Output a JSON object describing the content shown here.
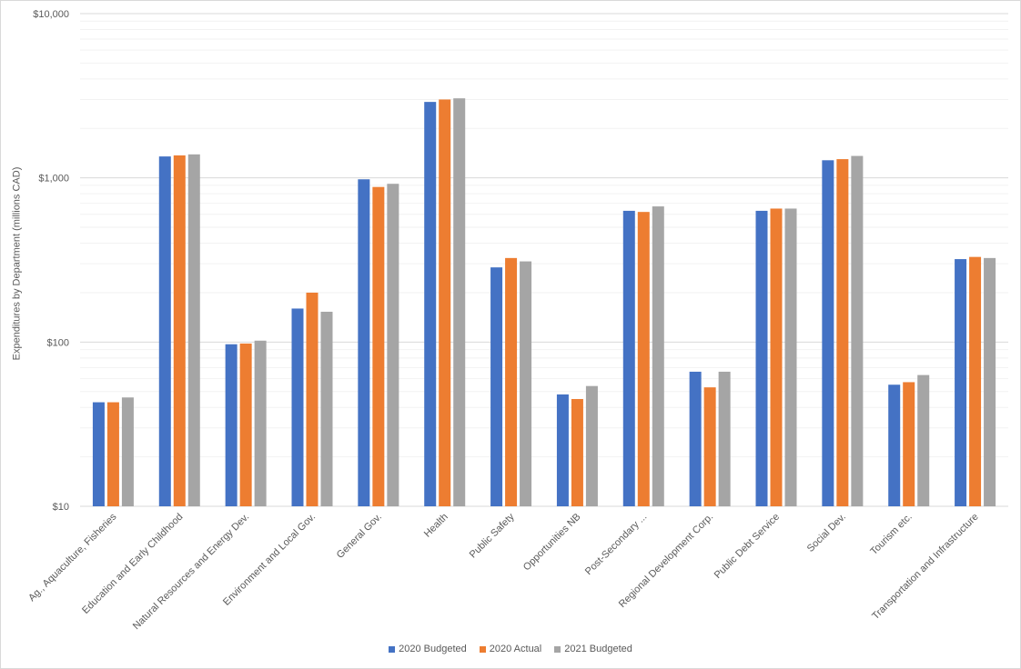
{
  "chart_data": {
    "type": "bar",
    "scale": "log",
    "title": "",
    "ylabel": "Expenditures by Department (millions CAD)",
    "xlabel": "",
    "ylim": [
      10,
      10000
    ],
    "yticks": [
      10,
      100,
      1000,
      10000
    ],
    "ytick_labels": [
      "$10",
      "$100",
      "$1,000",
      "$10,000"
    ],
    "grid": true,
    "legend_position": "bottom",
    "categories": [
      "Ag., Aquaculture, Fisheries",
      "Education and Early Childhood",
      "Natural Resources and Energy Dev.",
      "Environment and Local Gov.",
      "General Gov.",
      "Health",
      "Public Safety",
      "Opportunities NB",
      "Post-Secondary ...",
      "Regional Development Corp.",
      "Public Debt Service",
      "Social Dev.",
      "Tourism etc.",
      "Transportation and Infrastructure"
    ],
    "series": [
      {
        "name": "2020 Budgeted",
        "color": "#4472C4",
        "values": [
          43,
          1350,
          97,
          160,
          980,
          2900,
          285,
          48,
          630,
          66,
          630,
          1280,
          55,
          320
        ]
      },
      {
        "name": "2020 Actual",
        "color": "#ED7D31",
        "values": [
          43,
          1370,
          98,
          200,
          880,
          3000,
          325,
          45,
          620,
          53,
          650,
          1300,
          57,
          330
        ]
      },
      {
        "name": "2021 Budgeted",
        "color": "#A5A5A5",
        "values": [
          46,
          1390,
          102,
          153,
          920,
          3050,
          310,
          54,
          670,
          66,
          650,
          1360,
          63,
          325
        ]
      }
    ]
  }
}
